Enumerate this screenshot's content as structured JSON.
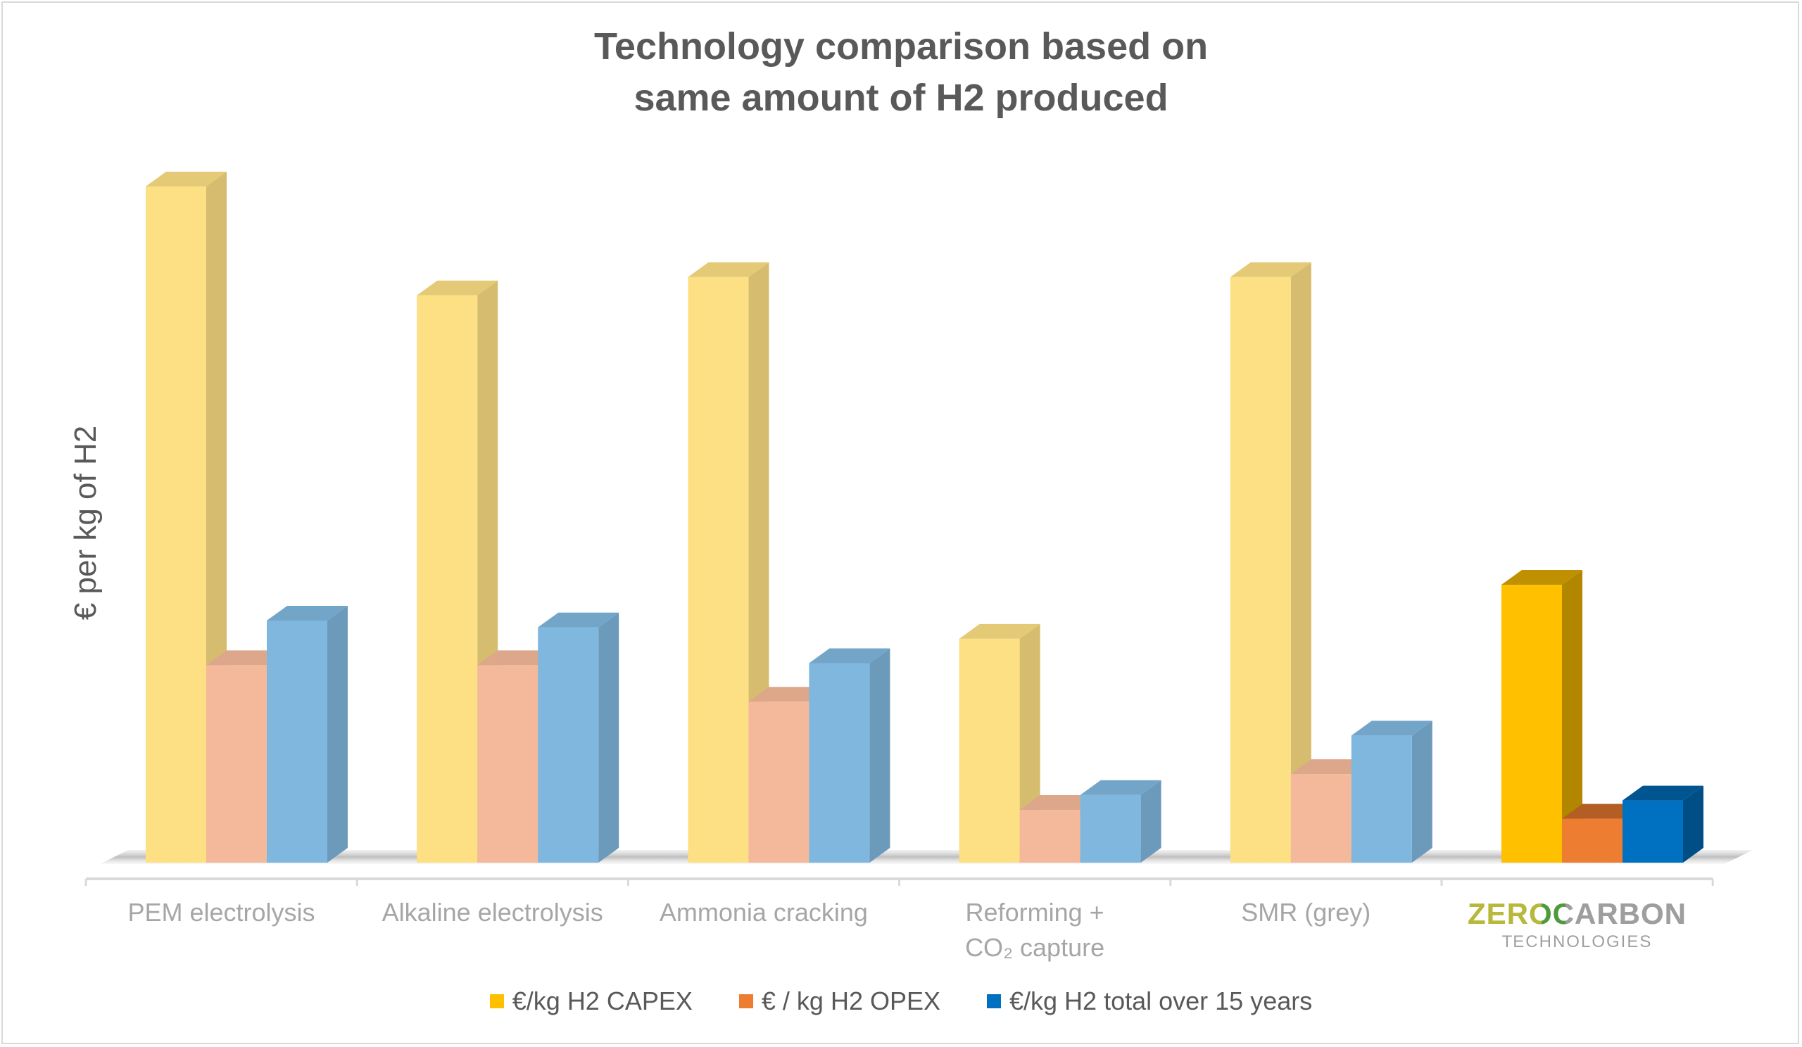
{
  "chart_data": {
    "type": "bar",
    "title": "Technology comparison based on same amount of H2 produced",
    "title_lines": [
      "Technology comparison based on",
      "same amount of H2 produced"
    ],
    "ylabel": "€ per kg of H2",
    "xlabel": "",
    "value_note": "relative bar heights (no axis ticks printed)",
    "categories": [
      "PEM electrolysis",
      "Alkaline electrolysis",
      "Ammonia cracking",
      "Reforming + CO₂ capture",
      "SMR (grey)",
      "ZEROCARBON TECHNOLOGIES"
    ],
    "series": [
      {
        "name": "€/kg H2 CAPEX",
        "color": "#FFC000",
        "pale_color": "#FDE083",
        "values": [
          100,
          83.9,
          86.6,
          33.1,
          86.6,
          41.1
        ]
      },
      {
        "name": "€ / kg H2 OPEX",
        "color": "#ED7D31",
        "pale_color": "#F4B99A",
        "values": [
          29.2,
          29.2,
          23.8,
          7.8,
          13.1,
          6.5
        ]
      },
      {
        "name": "€/kg H2 total over 15 years",
        "color": "#0070C0",
        "pale_color": "#80B7DF",
        "values": [
          35.8,
          34.8,
          29.5,
          10.0,
          18.8,
          9.2
        ]
      }
    ],
    "highlighted_category": "ZEROCARBON TECHNOLOGIES",
    "ylim": [
      0,
      100
    ],
    "grid": false,
    "legend_position": "bottom",
    "chart_style": "3D clustered column"
  },
  "logo": {
    "line1_a": "ZER",
    "line1_o": "O",
    "line1_b": "ARBON",
    "line2": "TECHNOLOGIES"
  }
}
